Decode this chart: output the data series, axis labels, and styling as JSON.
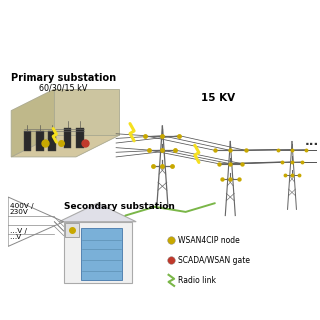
{
  "title_primary": "Primary substation",
  "title_primary_sub": "60/30/15 kV",
  "title_secondary": "Secondary substation",
  "label_15kv": "15 KV",
  "legend_items": [
    {
      "color": "#c8a800",
      "label": "WSAN4CIP node"
    },
    {
      "color": "#c0392b",
      "label": "SCADA/WSAN gate"
    },
    {
      "color": "#7ab648",
      "label": "Radio link",
      "is_lightning": true
    }
  ],
  "tower_color": "#666666",
  "wire_color": "#555555",
  "lightning_color": "#f5e020",
  "node_color_yellow": "#c8a800",
  "node_color_red": "#c0392b",
  "radio_link_color": "#7ab648",
  "primary_platform_color": "#d4c8a0",
  "primary_platform_edge": "#999977",
  "secondary_wall_color": "#e8e8e8",
  "secondary_wall_edge": "#aaaaaa",
  "cabinet_color": "#6699cc",
  "cabinet_edge": "#336688"
}
